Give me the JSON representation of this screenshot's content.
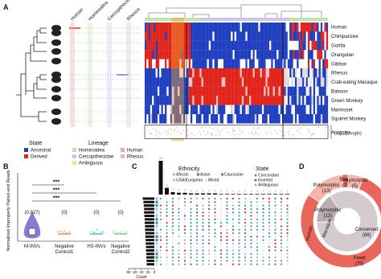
{
  "panel_a": {
    "label": "A",
    "column_labels": [
      "Human",
      "Hominoidea",
      "Cercopithecidae",
      "Rhesus"
    ],
    "species": [
      "Human",
      "Chimpanzee",
      "Gorilla",
      "Orangutan",
      "Gibbon",
      "Rhesus",
      "Crab-eating Macaque",
      "Baboon",
      "Green Monkey",
      "Marmoset",
      "Squirrel Monkey",
      "Ancestor"
    ],
    "state_title": "State",
    "states": [
      {
        "name": "Ancestral",
        "color": "#1f3fbf"
      },
      {
        "name": "Derived",
        "color": "#e0241b"
      }
    ],
    "lineage_title": "Lineage",
    "lineages": [
      {
        "name": "Hominoidea",
        "color": "#bfe3a8"
      },
      {
        "name": "Cercopithecidae",
        "color": "#c9c6e8"
      },
      {
        "name": "Ambiguous",
        "color": "#f3e08a"
      },
      {
        "name": "Human",
        "color": "#f2a4a4"
      },
      {
        "name": "Rhesus",
        "color": "#d8b9e3"
      }
    ],
    "length_axis": "Log₁₀(Length)"
  },
  "panel_b": {
    "label": "B",
    "y_axis_label": "Normalized Improperly Paired-end Reads",
    "significance": [
      "***",
      "***",
      "***"
    ],
    "groups": [
      {
        "name": [
          "M-INVs"
        ],
        "annotation": "(0.027)",
        "color": "#6a5acd"
      },
      {
        "name": [
          "Negative",
          "Control1"
        ],
        "annotation": "(0)",
        "color": "#e07b39"
      },
      {
        "name": [
          "HS-INVs"
        ],
        "annotation": "(0)",
        "color": "#3aa9c9"
      },
      {
        "name": [
          "Negative",
          "Control2"
        ],
        "annotation": "(0)",
        "color": "#6cc36c"
      }
    ]
  },
  "panel_c": {
    "label": "C",
    "ethnicity_title": "Ethnicity",
    "ethnicities": [
      {
        "name": "African",
        "color": "#7fc8e8"
      },
      {
        "name": "Asian",
        "color": "#3a7bbf"
      },
      {
        "name": "Caucasian",
        "color": "#2a9d8f"
      },
      {
        "name": "USA/European",
        "color": "#9bd3c6"
      },
      {
        "name": "Mixed",
        "color": "#cfe8f0"
      }
    ],
    "state_title": "State",
    "states": [
      {
        "name": "Concordant",
        "color": "#2a9db5"
      },
      {
        "name": "Inverted",
        "color": "#d62728"
      },
      {
        "name": "Ambiguous",
        "color": "#b0b0b0"
      }
    ],
    "bar_values": [
      55,
      11,
      4,
      3,
      3,
      2,
      2,
      2,
      2,
      2,
      1,
      1,
      1,
      1,
      1,
      1,
      1,
      1,
      1,
      1,
      1,
      1
    ],
    "row_counts": [
      36,
      34,
      33,
      32,
      32,
      31,
      30,
      30,
      29,
      29,
      28,
      28,
      27,
      27,
      26,
      26,
      25,
      25,
      24,
      24
    ],
    "count_ticks": [
      80,
      60,
      40,
      20,
      0
    ],
    "count_label": "Count"
  },
  "panel_d": {
    "label": "D",
    "ring_labels": [
      "Human",
      "Macaque"
    ],
    "outer": [
      {
        "name": "Fixed",
        "value": 75,
        "label": "(75)",
        "color": "#e8665a"
      },
      {
        "name": "Polymorphic",
        "value": 13,
        "label": "(13)",
        "color": "#f5b5ad"
      },
      {
        "name": "Fixed",
        "value": 2,
        "label": "(2)",
        "color": "#e8665a"
      },
      {
        "name": "Polymorphic",
        "value": 5,
        "label": "(5)",
        "color": "#f5b5ad"
      }
    ],
    "inner": [
      {
        "name": "Conserved",
        "value": 68,
        "label": "(68)",
        "color": "#d4cbd0"
      },
      {
        "name": "Polymorphic",
        "value": 13,
        "label": "(13)",
        "color": "#b8aeb4"
      }
    ]
  }
}
